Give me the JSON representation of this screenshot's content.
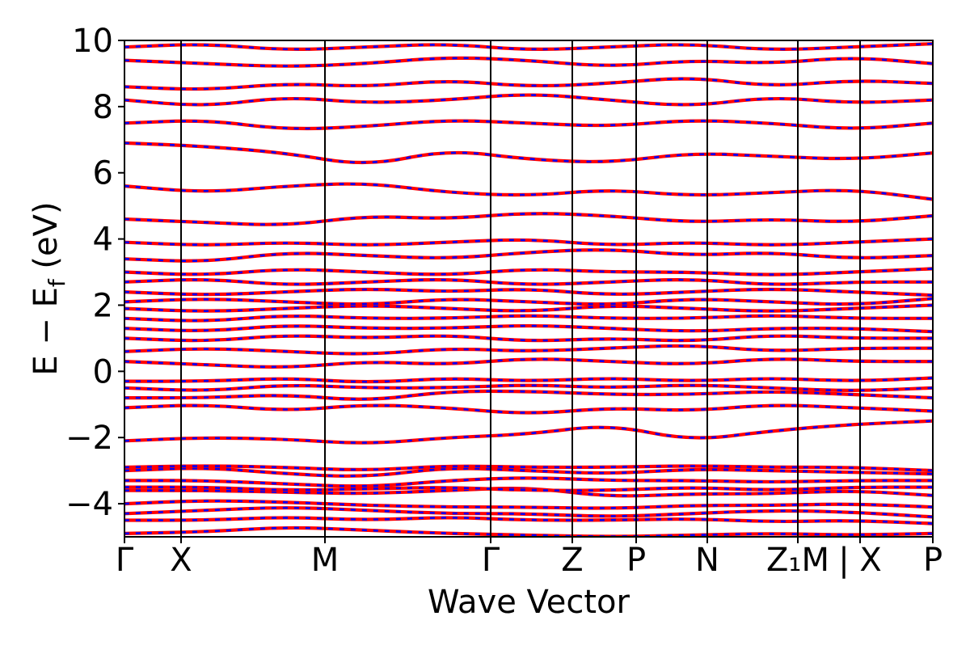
{
  "chart_data": {
    "type": "line",
    "title": "",
    "xlabel": "Wave Vector",
    "ylabel": "E − E_f (eV)",
    "ylabel_main": "E − E",
    "ylabel_sub": "f",
    "ylabel_tail": " (eV)",
    "ylim": [
      -5,
      10
    ],
    "yticks": [
      -4,
      -2,
      0,
      2,
      4,
      6,
      8,
      10
    ],
    "ytick_labels": [
      "−4",
      "−2",
      "0",
      "2",
      "4",
      "6",
      "8",
      "10"
    ],
    "xlim": [
      0,
      10
    ],
    "kpoints": [
      {
        "label": "Γ",
        "x": 0.0
      },
      {
        "label": "X",
        "x": 0.7
      },
      {
        "label": "M",
        "x": 2.48
      },
      {
        "label": "Γ",
        "x": 4.53
      },
      {
        "label": "Z",
        "x": 5.54
      },
      {
        "label": "P",
        "x": 6.33
      },
      {
        "label": "N",
        "x": 7.21
      },
      {
        "label": "Z₁M",
        "x": 8.33
      },
      {
        "label": "| X",
        "x": 9.1
      },
      {
        "label": "P",
        "x": 10.0
      }
    ],
    "series": [
      {
        "name": "",
        "color": "#ff0000",
        "style": "solid"
      },
      {
        "name": "",
        "color": "#0000ff",
        "style": "dashed"
      }
    ],
    "bands": [
      [
        -4.9,
        -4.85,
        -4.7,
        -4.8,
        -4.9,
        -4.95,
        -5.0,
        -4.95,
        -4.9,
        -4.95,
        -4.9
      ],
      [
        -4.5,
        -4.5,
        -4.4,
        -4.5,
        -4.4,
        -4.5,
        -4.5,
        -4.45,
        -4.55,
        -4.5,
        -4.6
      ],
      [
        -4.3,
        -4.2,
        -4.1,
        -4.2,
        -4.3,
        -4.3,
        -4.4,
        -4.3,
        -4.2,
        -4.25,
        -4.4
      ],
      [
        -4.0,
        -3.9,
        -3.95,
        -4.05,
        -4.1,
        -4.1,
        -4.15,
        -4.05,
        -4.05,
        -4.0,
        -4.1
      ],
      [
        -3.6,
        -3.6,
        -3.65,
        -3.7,
        -3.6,
        -3.5,
        -3.8,
        -3.7,
        -3.7,
        -3.6,
        -3.75
      ],
      [
        -3.5,
        -3.5,
        -3.6,
        -3.55,
        -3.5,
        -3.6,
        -3.6,
        -3.5,
        -3.6,
        -3.5,
        -3.5
      ],
      [
        -3.3,
        -3.3,
        -3.4,
        -3.5,
        -3.3,
        -3.2,
        -3.3,
        -3.3,
        -3.35,
        -3.3,
        -3.3
      ],
      [
        -3.0,
        -2.9,
        -3.1,
        -3.2,
        -2.9,
        -3.0,
        -3.1,
        -2.95,
        -3.0,
        -3.05,
        -3.1
      ],
      [
        -2.9,
        -2.85,
        -2.9,
        -3.0,
        -2.85,
        -2.9,
        -2.9,
        -2.85,
        -2.9,
        -2.9,
        -3.0
      ],
      [
        -2.1,
        -2.0,
        -2.05,
        -2.2,
        -2.0,
        -1.9,
        -1.6,
        -2.1,
        -1.8,
        -1.6,
        -1.5
      ],
      [
        -1.1,
        -1.0,
        -1.2,
        -1.0,
        -1.1,
        -1.3,
        -1.1,
        -1.2,
        -1.0,
        -1.1,
        -1.2
      ],
      [
        -0.8,
        -0.8,
        -0.7,
        -0.9,
        -0.6,
        -0.6,
        -0.7,
        -0.7,
        -0.6,
        -0.7,
        -0.8
      ],
      [
        -0.5,
        -0.6,
        -0.4,
        -0.5,
        -0.5,
        -0.4,
        -0.5,
        -0.4,
        -0.5,
        -0.6,
        -0.5
      ],
      [
        -0.3,
        -0.3,
        -0.2,
        -0.35,
        -0.2,
        -0.3,
        -0.2,
        -0.3,
        -0.2,
        -0.3,
        -0.2
      ],
      [
        0.3,
        0.2,
        0.1,
        0.3,
        0.2,
        0.4,
        0.3,
        0.2,
        0.4,
        0.3,
        0.3
      ],
      [
        0.6,
        0.7,
        0.6,
        0.5,
        0.7,
        0.6,
        0.7,
        0.8,
        0.6,
        0.7,
        0.7
      ],
      [
        1.0,
        0.9,
        1.1,
        1.0,
        1.1,
        0.9,
        1.0,
        0.9,
        1.1,
        1.0,
        1.0
      ],
      [
        1.3,
        1.2,
        1.4,
        1.3,
        1.3,
        1.4,
        1.3,
        1.2,
        1.3,
        1.3,
        1.2
      ],
      [
        1.6,
        1.5,
        1.7,
        1.6,
        1.6,
        1.7,
        1.6,
        1.6,
        1.7,
        1.6,
        1.6
      ],
      [
        1.9,
        1.8,
        1.9,
        2.0,
        1.9,
        1.8,
        2.0,
        1.9,
        1.8,
        1.9,
        2.0
      ],
      [
        2.1,
        2.2,
        2.1,
        2.0,
        2.2,
        2.1,
        2.0,
        2.2,
        2.1,
        2.0,
        2.2
      ],
      [
        2.4,
        2.3,
        2.4,
        2.5,
        2.4,
        2.5,
        2.3,
        2.4,
        2.5,
        2.4,
        2.3
      ],
      [
        2.7,
        2.8,
        2.6,
        2.7,
        2.8,
        2.6,
        2.7,
        2.8,
        2.6,
        2.7,
        2.7
      ],
      [
        3.0,
        2.9,
        3.1,
        3.0,
        2.9,
        3.1,
        3.0,
        3.0,
        2.9,
        3.0,
        3.1
      ],
      [
        3.4,
        3.3,
        3.6,
        3.5,
        3.4,
        3.6,
        3.7,
        3.5,
        3.6,
        3.4,
        3.5
      ],
      [
        3.9,
        3.8,
        3.9,
        3.8,
        3.9,
        4.0,
        3.8,
        3.9,
        3.8,
        3.9,
        4.0
      ],
      [
        4.6,
        4.5,
        4.4,
        4.7,
        4.6,
        4.8,
        4.7,
        4.5,
        4.6,
        4.5,
        4.7
      ],
      [
        5.6,
        5.4,
        5.6,
        5.7,
        5.4,
        5.3,
        5.5,
        5.3,
        5.4,
        5.5,
        5.2
      ],
      [
        6.9,
        6.8,
        6.6,
        6.2,
        6.7,
        6.4,
        6.3,
        6.6,
        6.5,
        6.4,
        6.6
      ],
      [
        7.5,
        7.6,
        7.3,
        7.4,
        7.6,
        7.5,
        7.4,
        7.6,
        7.5,
        7.3,
        7.5
      ],
      [
        8.2,
        8.0,
        8.3,
        8.1,
        8.2,
        8.4,
        8.2,
        8.0,
        8.3,
        8.1,
        8.2
      ],
      [
        8.6,
        8.5,
        8.7,
        8.6,
        8.8,
        8.6,
        8.7,
        8.9,
        8.6,
        8.8,
        8.7
      ],
      [
        9.4,
        9.3,
        9.2,
        9.3,
        9.5,
        9.4,
        9.2,
        9.4,
        9.3,
        9.5,
        9.3
      ],
      [
        9.8,
        9.9,
        9.7,
        9.8,
        9.9,
        9.7,
        9.8,
        9.9,
        9.7,
        9.8,
        9.9
      ]
    ],
    "grid": false,
    "legend": "none"
  }
}
